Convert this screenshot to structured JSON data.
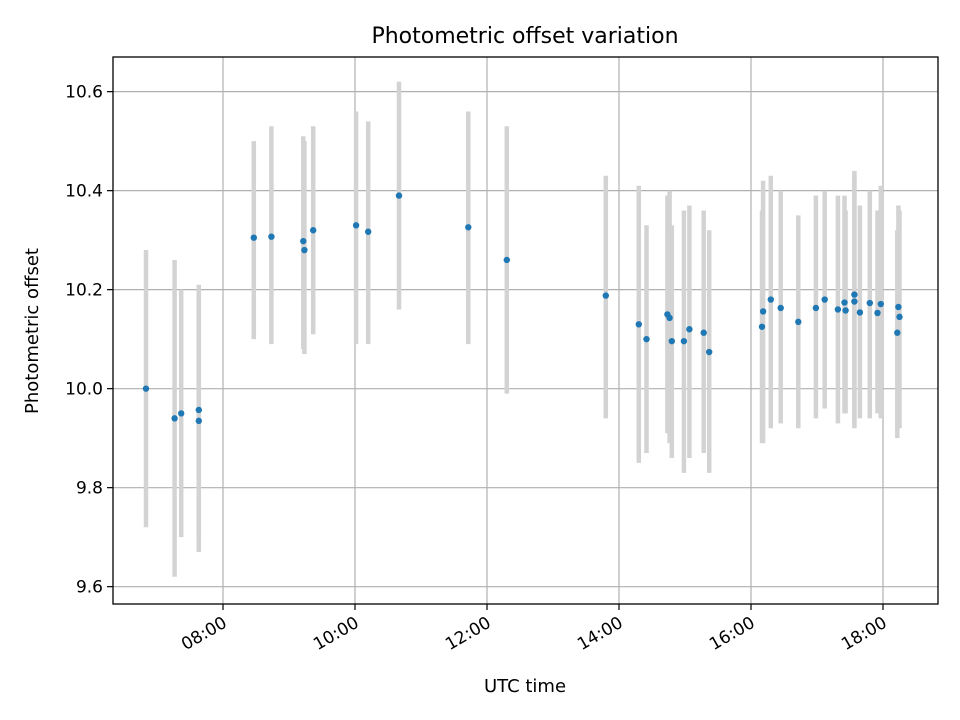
{
  "chart_data": {
    "type": "scatter",
    "title": "Photometric offset variation",
    "xlabel": "UTC time",
    "ylabel": "Photometric offset",
    "xlim": [
      "06:20",
      "18:50"
    ],
    "ylim": [
      9.565,
      10.67
    ],
    "x_ticks": [
      "08:00",
      "10:00",
      "12:00",
      "14:00",
      "16:00",
      "18:00"
    ],
    "y_ticks": [
      "9.6",
      "9.8",
      "10.0",
      "10.2",
      "10.4",
      "10.6"
    ],
    "grid": true,
    "colors": {
      "points": "#1f77b4",
      "errorbars": "#d3d3d3",
      "grid": "#b0b0b0"
    },
    "points": [
      {
        "x": "06:50",
        "y": 10.0,
        "ylo": 9.72,
        "yhi": 10.28
      },
      {
        "x": "07:16",
        "y": 9.94,
        "ylo": 9.62,
        "yhi": 10.26
      },
      {
        "x": "07:22",
        "y": 9.95,
        "ylo": 9.7,
        "yhi": 10.2
      },
      {
        "x": "07:38",
        "y": 9.957,
        "ylo": 9.7,
        "yhi": 10.21
      },
      {
        "x": "07:38",
        "y": 9.935,
        "ylo": 9.67,
        "yhi": 10.2
      },
      {
        "x": "08:28",
        "y": 10.305,
        "ylo": 10.1,
        "yhi": 10.5
      },
      {
        "x": "08:44",
        "y": 10.307,
        "ylo": 10.09,
        "yhi": 10.53
      },
      {
        "x": "09:13",
        "y": 10.298,
        "ylo": 10.08,
        "yhi": 10.51
      },
      {
        "x": "09:14",
        "y": 10.28,
        "ylo": 10.07,
        "yhi": 10.5
      },
      {
        "x": "09:22",
        "y": 10.32,
        "ylo": 10.11,
        "yhi": 10.53
      },
      {
        "x": "10:01",
        "y": 10.33,
        "ylo": 10.09,
        "yhi": 10.56
      },
      {
        "x": "10:12",
        "y": 10.317,
        "ylo": 10.09,
        "yhi": 10.54
      },
      {
        "x": "10:40",
        "y": 10.39,
        "ylo": 10.16,
        "yhi": 10.62
      },
      {
        "x": "11:43",
        "y": 10.326,
        "ylo": 10.09,
        "yhi": 10.56
      },
      {
        "x": "12:18",
        "y": 10.26,
        "ylo": 9.99,
        "yhi": 10.53
      },
      {
        "x": "13:48",
        "y": 10.188,
        "ylo": 9.94,
        "yhi": 10.43
      },
      {
        "x": "14:18",
        "y": 10.13,
        "ylo": 9.85,
        "yhi": 10.41
      },
      {
        "x": "14:25",
        "y": 10.1,
        "ylo": 9.87,
        "yhi": 10.33
      },
      {
        "x": "14:44",
        "y": 10.15,
        "ylo": 9.91,
        "yhi": 10.39
      },
      {
        "x": "14:46",
        "y": 10.143,
        "ylo": 9.89,
        "yhi": 10.4
      },
      {
        "x": "14:48",
        "y": 10.096,
        "ylo": 9.86,
        "yhi": 10.33
      },
      {
        "x": "14:59",
        "y": 10.096,
        "ylo": 9.83,
        "yhi": 10.36
      },
      {
        "x": "15:04",
        "y": 10.12,
        "ylo": 9.86,
        "yhi": 10.37
      },
      {
        "x": "15:17",
        "y": 10.113,
        "ylo": 9.87,
        "yhi": 10.36
      },
      {
        "x": "15:22",
        "y": 10.074,
        "ylo": 9.83,
        "yhi": 10.32
      },
      {
        "x": "16:10",
        "y": 10.125,
        "ylo": 9.89,
        "yhi": 10.36
      },
      {
        "x": "16:11",
        "y": 10.156,
        "ylo": 9.89,
        "yhi": 10.42
      },
      {
        "x": "16:18",
        "y": 10.18,
        "ylo": 9.92,
        "yhi": 10.43
      },
      {
        "x": "16:27",
        "y": 10.163,
        "ylo": 9.93,
        "yhi": 10.4
      },
      {
        "x": "16:43",
        "y": 10.135,
        "ylo": 9.92,
        "yhi": 10.35
      },
      {
        "x": "16:59",
        "y": 10.163,
        "ylo": 9.94,
        "yhi": 10.39
      },
      {
        "x": "17:07",
        "y": 10.18,
        "ylo": 9.96,
        "yhi": 10.4
      },
      {
        "x": "17:19",
        "y": 10.16,
        "ylo": 9.93,
        "yhi": 10.39
      },
      {
        "x": "17:25",
        "y": 10.174,
        "ylo": 9.95,
        "yhi": 10.39
      },
      {
        "x": "17:26",
        "y": 10.158,
        "ylo": 9.95,
        "yhi": 10.36
      },
      {
        "x": "17:34",
        "y": 10.19,
        "ylo": 9.92,
        "yhi": 10.44
      },
      {
        "x": "17:34",
        "y": 10.176,
        "ylo": 9.93,
        "yhi": 10.43
      },
      {
        "x": "17:39",
        "y": 10.154,
        "ylo": 9.94,
        "yhi": 10.37
      },
      {
        "x": "17:48",
        "y": 10.173,
        "ylo": 9.94,
        "yhi": 10.4
      },
      {
        "x": "17:55",
        "y": 10.153,
        "ylo": 9.95,
        "yhi": 10.36
      },
      {
        "x": "17:58",
        "y": 10.171,
        "ylo": 9.94,
        "yhi": 10.41
      },
      {
        "x": "18:13",
        "y": 10.113,
        "ylo": 9.9,
        "yhi": 10.32
      },
      {
        "x": "18:14",
        "y": 10.165,
        "ylo": 9.93,
        "yhi": 10.37
      },
      {
        "x": "18:15",
        "y": 10.145,
        "ylo": 9.92,
        "yhi": 10.36
      }
    ]
  }
}
